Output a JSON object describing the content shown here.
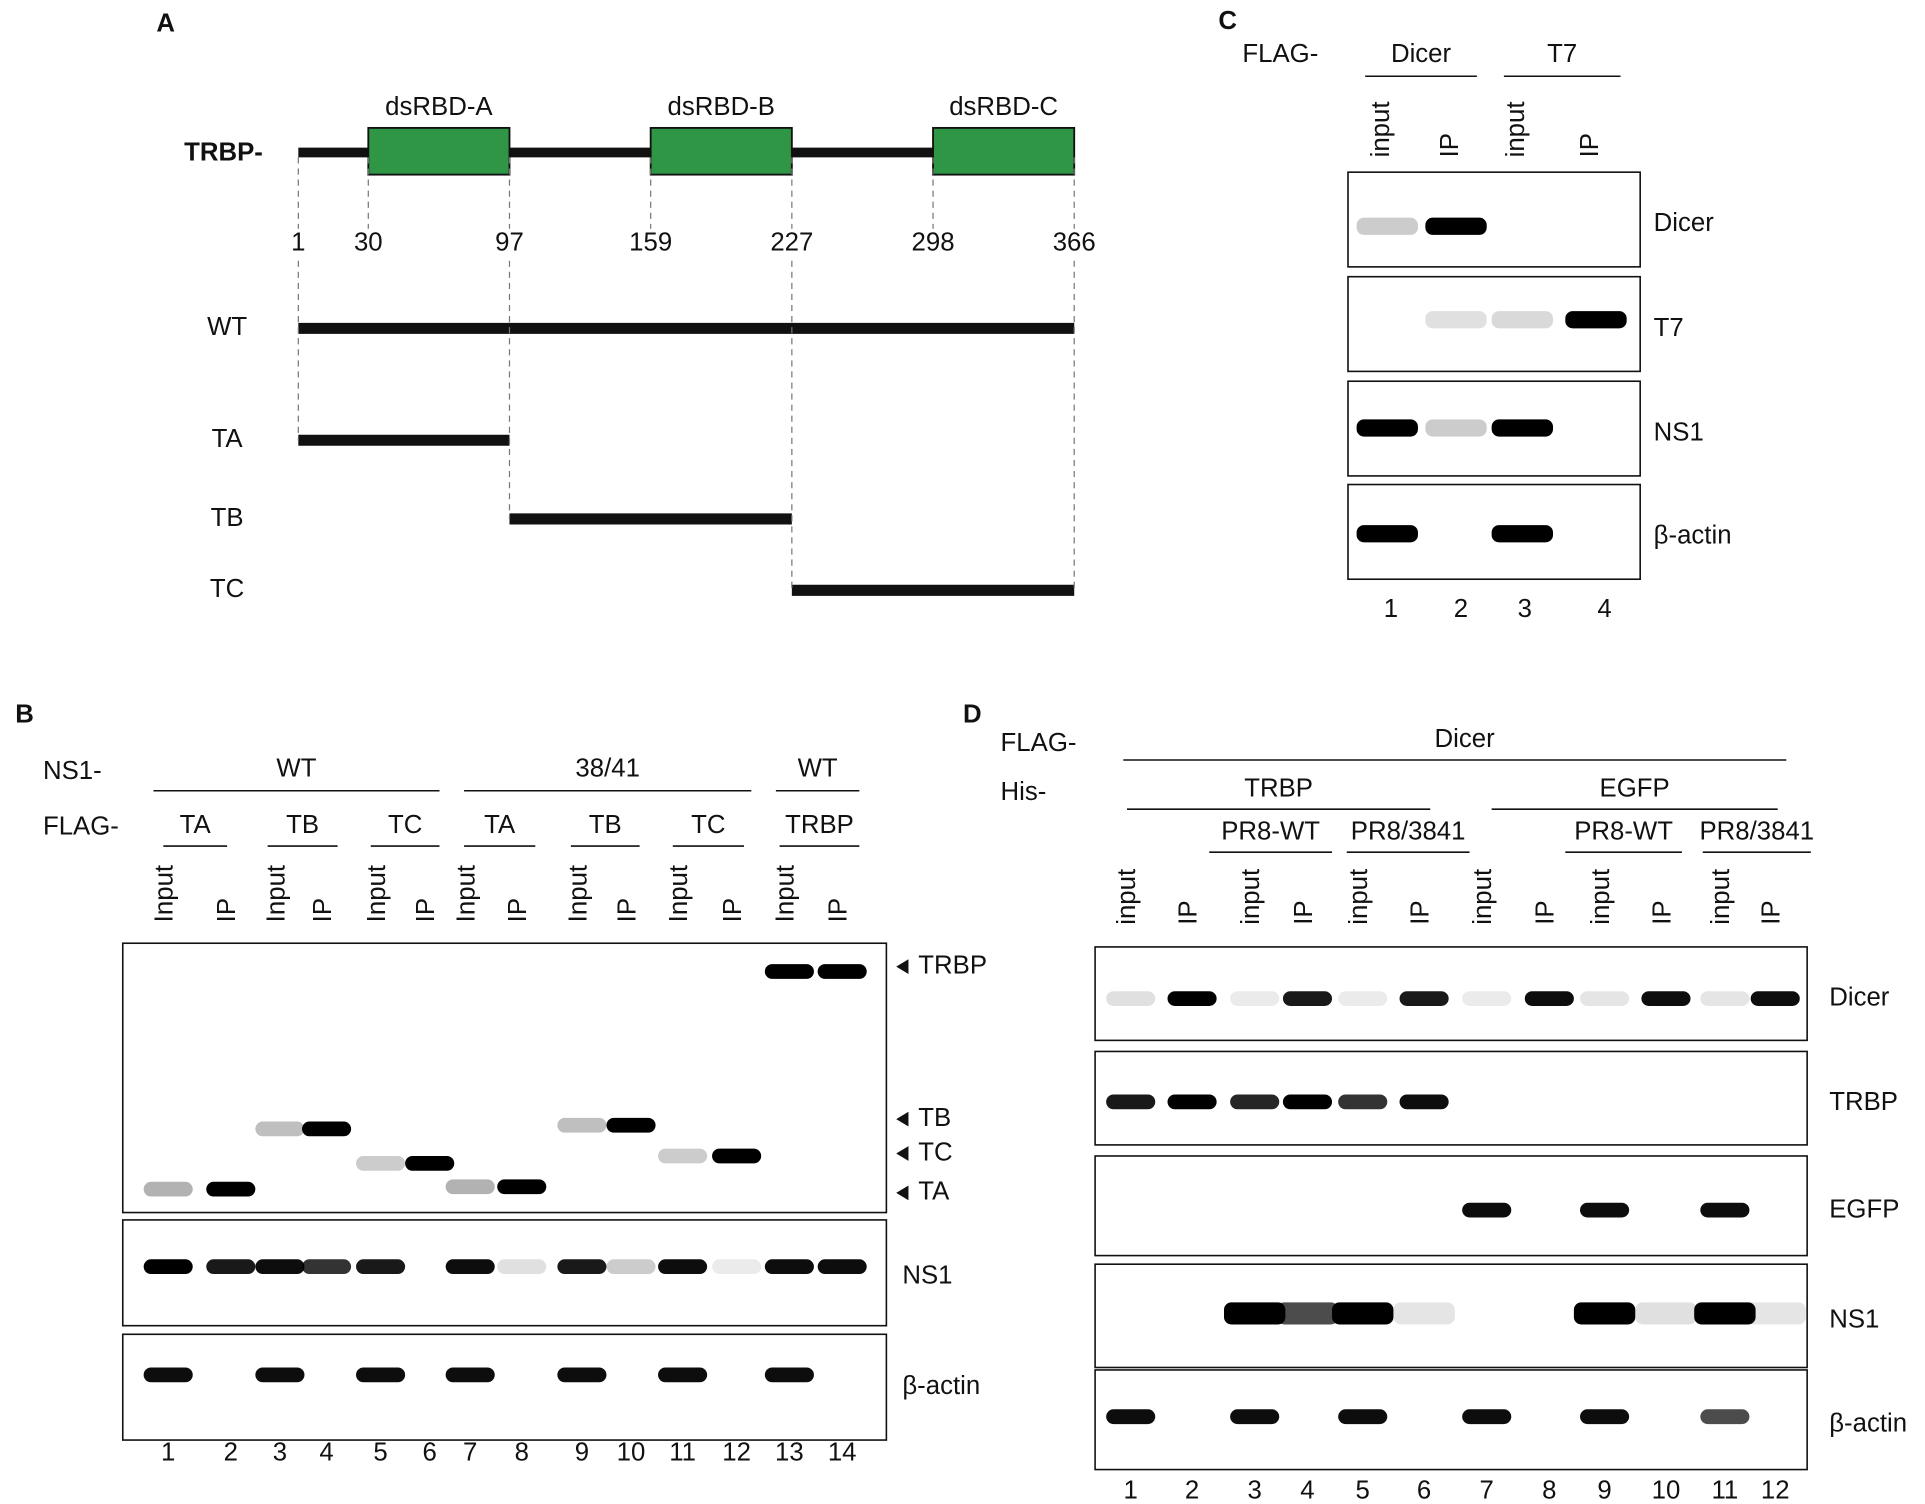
{
  "panels": {
    "A": {
      "label": "A",
      "protein": "TRBP-",
      "domains": [
        "dsRBD-A",
        "dsRBD-B",
        "dsRBD-C"
      ],
      "positions": [
        1,
        30,
        97,
        159,
        227,
        298,
        366
      ],
      "constructs": [
        "WT",
        "TA",
        "TB",
        "TC"
      ]
    },
    "B": {
      "label": "B",
      "rows": [
        {
          "label": "NS1-",
          "groups": [
            "WT",
            "38/41",
            "WT"
          ]
        },
        {
          "label": "FLAG-",
          "groups": [
            "TA",
            "TB",
            "TC",
            "TA",
            "TB",
            "TC",
            "TRBP"
          ]
        }
      ],
      "lanes": [
        "Input",
        "IP",
        "Input",
        "IP",
        "Input",
        "IP",
        "Input",
        "IP",
        "Input",
        "IP",
        "Input",
        "IP",
        "Input",
        "IP"
      ],
      "markers": [
        "TRBP",
        "TB",
        "TC",
        "TA"
      ],
      "blots": [
        "NS1",
        "β-actin"
      ],
      "lane_numbers": [
        1,
        2,
        3,
        4,
        5,
        6,
        7,
        8,
        9,
        10,
        11,
        12,
        13,
        14
      ]
    },
    "C": {
      "label": "C",
      "row_label": "FLAG-",
      "groups": [
        "Dicer",
        "T7"
      ],
      "lanes": [
        "input",
        "IP",
        "input",
        "IP"
      ],
      "blots": [
        "Dicer",
        "T7",
        "NS1",
        "β-actin"
      ],
      "lane_numbers": [
        1,
        2,
        3,
        4
      ]
    },
    "D": {
      "label": "D",
      "rows": [
        {
          "label": "FLAG-",
          "groups": [
            "Dicer"
          ]
        },
        {
          "label": "His-",
          "groups": [
            "TRBP",
            "EGFP"
          ]
        }
      ],
      "subgroups": [
        "PR8-WT",
        "PR8/3841",
        "PR8-WT",
        "PR8/3841"
      ],
      "lanes": [
        "input",
        "IP",
        "input",
        "IP",
        "input",
        "IP",
        "input",
        "IP",
        "input",
        "IP",
        "input",
        "IP"
      ],
      "blots": [
        "Dicer",
        "TRBP",
        "EGFP",
        "NS1",
        "β-actin"
      ],
      "lane_numbers": [
        1,
        2,
        3,
        4,
        5,
        6,
        7,
        8,
        9,
        10,
        11,
        12
      ]
    }
  }
}
